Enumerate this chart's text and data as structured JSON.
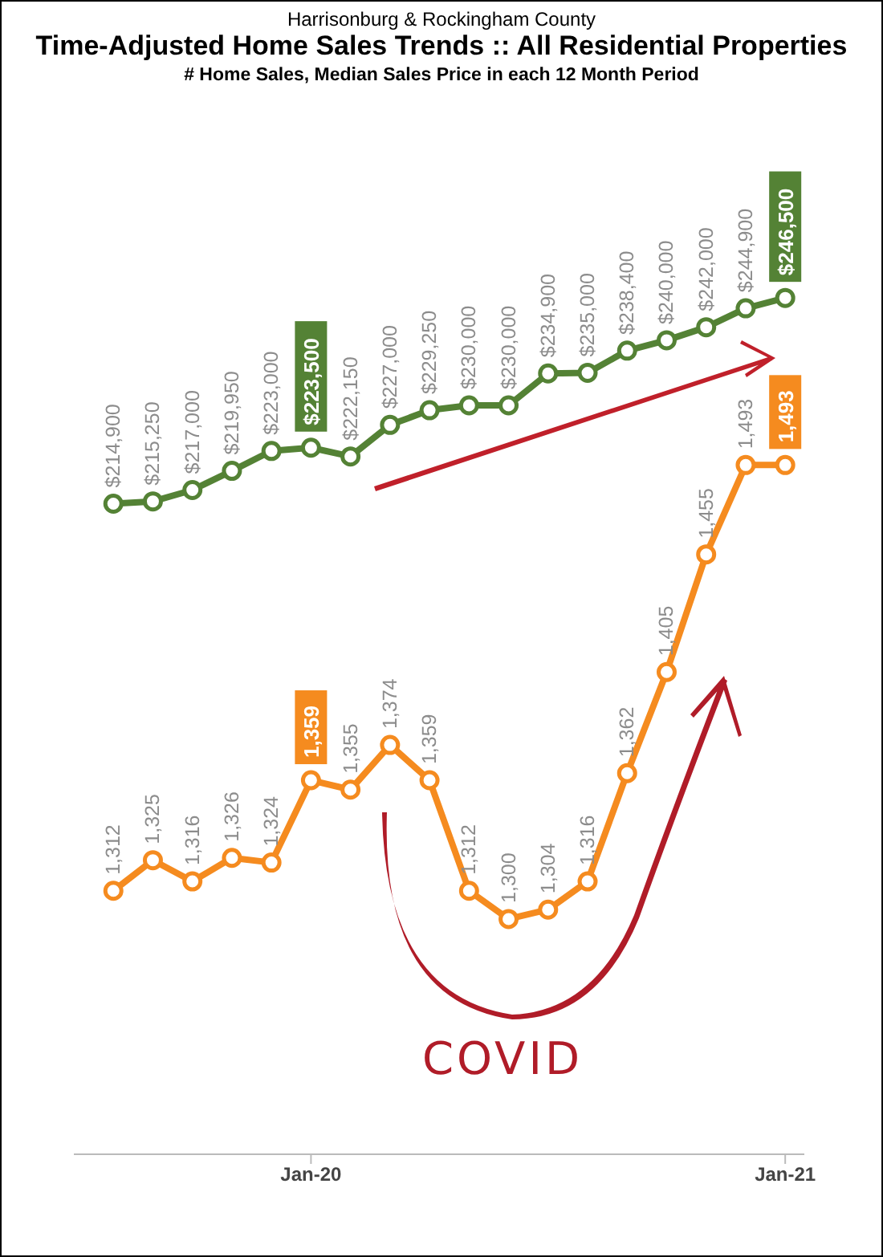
{
  "chart_data": {
    "type": "line",
    "title": "Time-Adjusted Home Sales Trends  ::  All Residential Properties",
    "subtitle": "# Home Sales, Median Sales Price in each 12 Month Period",
    "annotations": [
      "Harrisonburg & Rockingham County",
      "COVID"
    ],
    "x": [
      "2019-08",
      "2019-09",
      "2019-10",
      "2019-11",
      "2019-12",
      "2020-01",
      "2020-02",
      "2020-03",
      "2020-04",
      "2020-05",
      "2020-06",
      "2020-07",
      "2020-08",
      "2020-09",
      "2020-10",
      "2020-11",
      "2020-12",
      "2021-01"
    ],
    "xlim": [
      "2019-07",
      "2021-01-16"
    ],
    "xticks": [
      {
        "value": "2020-01",
        "label": "Jan-20"
      },
      {
        "value": "2021-01",
        "label": "Jan-21"
      }
    ],
    "ylim": [
      1200,
      1690
    ],
    "y2lim": [
      115000,
      292000
    ],
    "tick_labels": "x",
    "marker": "circle",
    "series": [
      {
        "color": "#548235",
        "axis": "y2",
        "values": [
          214900,
          215250,
          217000,
          219950,
          223000,
          223500,
          222150,
          227000,
          229250,
          230000,
          230000,
          234900,
          235000,
          238400,
          240000,
          242000,
          244900,
          246500
        ],
        "value_labels": [
          "$214,900",
          "$215,250",
          "$217,000",
          "$219,950",
          "$223,000",
          "$223,500",
          "$222,150",
          "$227,000",
          "$229,250",
          "$230,000",
          "$230,000",
          "$234,900",
          "$235,000",
          "$238,400",
          "$240,000",
          "$242,000",
          "$244,900",
          "$246,500"
        ]
      },
      {
        "color": "#f58b1f",
        "values": [
          1312,
          1325,
          1316,
          1326,
          1324,
          1359,
          1355,
          1374,
          1359,
          1312,
          1300,
          1304,
          1316,
          1362,
          1405,
          1455,
          1493,
          1493
        ],
        "value_labels": [
          "1,312",
          "1,325",
          "1,316",
          "1,326",
          "1,324",
          "1,359",
          "1,355",
          "1,374",
          "1,359",
          "1,312",
          "1,300",
          "1,304",
          "1,316",
          "1,362",
          "1,405",
          "1,455",
          "1,493",
          "1,493"
        ]
      }
    ]
  }
}
